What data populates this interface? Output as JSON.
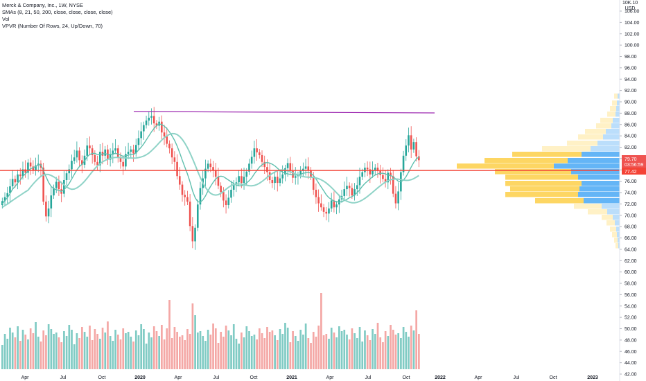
{
  "legend": {
    "title": "Merck & Company, Inc., 1W, NYSE",
    "sma": "SMAs (8, 21, 50, 200, close, close, close, close)",
    "vol": "Vol",
    "vpvr": "VPVR (Number Of Rows, 24, Up/Down, 70)"
  },
  "currency": {
    "top": "10K.10",
    "unit": "USD"
  },
  "price_labels": {
    "last": "79.70",
    "countdown": "03:56:59",
    "level": "77.42"
  },
  "colors": {
    "up": "#26a69a",
    "down": "#ef5350",
    "sma": "#5fbfae",
    "resistance": "#9c27b0",
    "support": "#f44336",
    "vp_up": "#64b5f6",
    "vp_down": "#fdd663"
  },
  "chart_data": {
    "type": "candlestick",
    "title": "Merck & Company, Inc., 1W, NYSE",
    "y_ticks": [
      "106.00",
      "104.00",
      "102.00",
      "100.00",
      "98.00",
      "96.00",
      "94.00",
      "92.00",
      "90.00",
      "88.00",
      "86.00",
      "84.00",
      "82.00",
      "80.00",
      "78.00",
      "76.00",
      "74.00",
      "72.00",
      "70.00",
      "68.00",
      "66.00",
      "64.00",
      "62.00",
      "60.00",
      "58.00",
      "56.00",
      "54.00",
      "52.00",
      "50.00",
      "48.00",
      "46.00",
      "44.00",
      "42.00"
    ],
    "x_ticks": [
      "Apr",
      "Jul",
      "Oct",
      "2020",
      "Apr",
      "Jul",
      "Oct",
      "2021",
      "Apr",
      "Jul",
      "Oct",
      "2022",
      "Apr",
      "Jul",
      "Oct",
      "2023"
    ],
    "closes": [
      72.5,
      73.2,
      73.9,
      75.1,
      76.4,
      75.8,
      77.2,
      76.9,
      78.1,
      77.5,
      79.3,
      78.6,
      77.9,
      78.8,
      79.1,
      78.4,
      72.4,
      69.8,
      71.2,
      73.5,
      74.8,
      75.9,
      74.6,
      73.8,
      76.2,
      77.4,
      78.1,
      79.6,
      80.2,
      81.4,
      79.7,
      78.9,
      80.5,
      82.3,
      81.8,
      80.6,
      79.4,
      78.8,
      81.2,
      80.5,
      81.6,
      79.8,
      80.7,
      81.4,
      81.8,
      80.2,
      79.4,
      78.6,
      80.8,
      81.2,
      81.6,
      80.9,
      82.4,
      83.6,
      84.8,
      85.9,
      86.7,
      87.2,
      87.5,
      86.2,
      85.8,
      86.5,
      84.6,
      83.9,
      82.6,
      81.8,
      80.2,
      79.4,
      76.9,
      75.4,
      73.6,
      73.2,
      72.4,
      68.1,
      65.4,
      67.8,
      71.9,
      74.8,
      76.5,
      78.2,
      79.1,
      78.5,
      77.9,
      76.8,
      75.2,
      74.1,
      72.6,
      71.8,
      73.1,
      74.5,
      75.6,
      75.8,
      76.9,
      75.7,
      76.8,
      77.7,
      79.1,
      80.3,
      81.8,
      81.1,
      80.6,
      79.4,
      78.5,
      77.6,
      76.2,
      75.7,
      76.8,
      75.7,
      76.5,
      77.2,
      78.3,
      79.2,
      77.8,
      76.6,
      76.9,
      77.1,
      77.8,
      78.2,
      78.6,
      77.9,
      76.8,
      74.5,
      73.2,
      72.1,
      71.4,
      70.6,
      70.3,
      71.2,
      72.6,
      71.4,
      71.9,
      72.8,
      73.4,
      74.6,
      75.2,
      74.8,
      73.5,
      74.6,
      75.3,
      76.8,
      77.6,
      78.4,
      78.1,
      77.2,
      77.9,
      78.4,
      77.8,
      77.1,
      76.4,
      75.8,
      77.5,
      76.9,
      73.8,
      72.1,
      74.2,
      77.6,
      80.5,
      82.3,
      84.1,
      81.6,
      82.9,
      80.4,
      79.7
    ],
    "sma_fast": [
      72.0,
      72.6,
      73.1,
      73.8,
      74.6,
      75.1,
      75.7,
      76.2,
      76.9,
      77.3,
      77.9,
      78.2,
      78.4,
      78.6,
      78.9,
      78.9,
      77.9,
      76.8,
      75.8,
      75.1,
      74.7,
      74.5,
      74.4,
      74.2,
      74.5,
      75.0,
      75.6,
      76.4,
      77.2,
      78.0,
      78.6,
      79.0,
      79.6,
      80.3,
      80.7,
      80.9,
      80.9,
      80.7,
      80.7,
      80.8,
      80.9,
      80.7,
      80.7,
      80.8,
      80.9,
      80.8,
      80.6,
      80.4,
      80.5,
      80.6,
      80.7,
      80.7,
      81.0,
      81.5,
      82.0,
      82.6,
      83.3,
      84.0,
      84.7,
      85.3,
      85.8,
      86.1,
      86.0,
      85.7,
      85.3,
      84.7,
      84.0,
      83.2,
      82.2,
      81.0,
      79.7,
      78.5,
      77.3,
      75.9,
      74.3,
      73.1,
      72.4,
      72.3,
      72.7,
      73.4,
      74.3,
      75.1,
      75.8,
      76.4,
      76.8,
      76.9,
      76.8,
      76.5,
      76.2,
      75.9,
      75.6,
      75.3,
      75.2,
      75.2,
      75.4,
      75.7,
      76.1,
      76.6,
      77.3,
      77.9,
      78.5,
      78.9,
      79.2,
      79.3,
      79.2,
      79.0,
      78.7,
      78.3,
      77.9,
      77.6,
      77.4,
      77.3,
      77.2,
      77.1,
      77.1,
      77.1,
      77.2,
      77.4,
      77.5,
      77.6,
      77.4,
      77.0,
      76.4,
      75.7,
      75.0,
      74.3,
      73.6,
      73.1,
      72.8,
      72.5,
      72.4,
      72.3,
      72.4,
      72.6,
      72.8,
      73.1,
      73.3,
      73.6,
      74.0,
      74.5,
      75.1,
      75.6,
      76.0,
      76.4,
      76.8,
      77.1,
      77.3,
      77.4,
      77.4,
      77.3,
      77.1,
      77.0,
      76.8,
      76.4,
      76.0,
      75.9,
      76.2,
      76.8,
      77.6,
      78.5,
      79.3,
      79.9,
      80.3
    ]
  }
}
